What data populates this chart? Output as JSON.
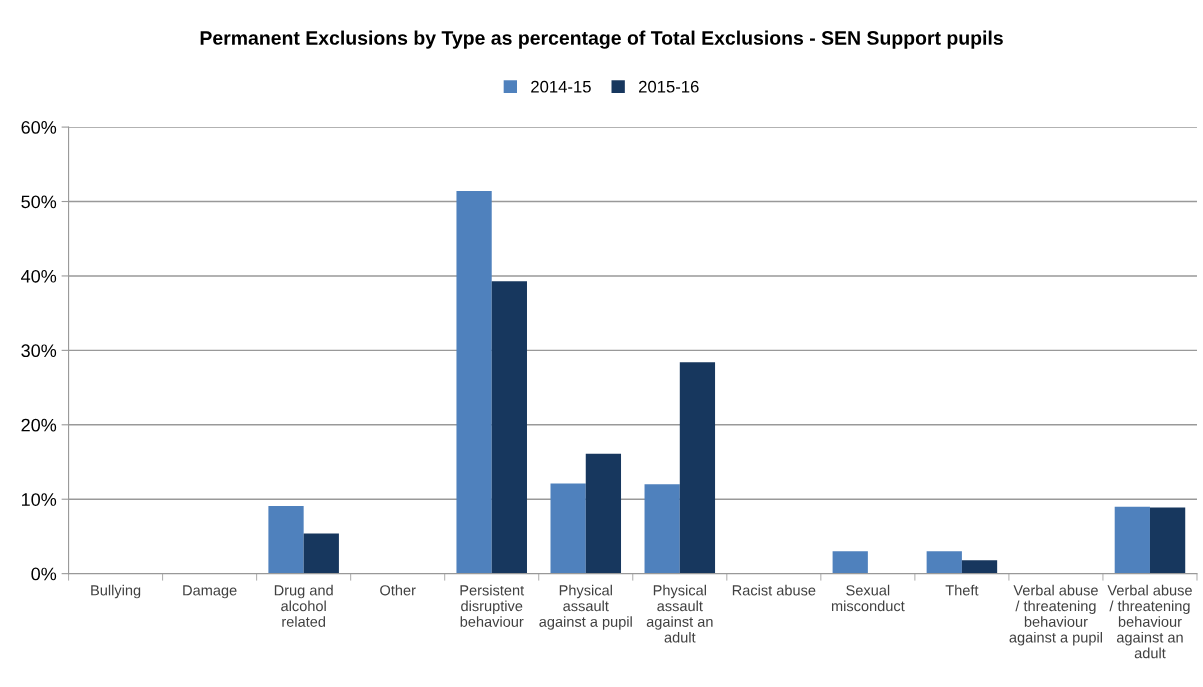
{
  "chart_data": {
    "type": "bar",
    "title": "Permanent Exclusions by Type as percentage of Total Exclusions - SEN Support pupils",
    "categories": [
      "Bullying",
      "Damage",
      "Drug and\nalcohol\nrelated",
      "Other",
      "Persistent\ndisruptive\nbehaviour",
      "Physical\nassault\nagainst a pupil",
      "Physical\nassault\nagainst an\nadult",
      "Racist abuse",
      "Sexual\nmisconduct",
      "Theft",
      "Verbal abuse\n/ threatening\nbehaviour\nagainst a pupil",
      "Verbal abuse\n/ threatening\nbehaviour\nagainst an\nadult"
    ],
    "series": [
      {
        "name": "2014-15",
        "color": "#4f81bd",
        "values": [
          0,
          0,
          9.1,
          0,
          51.4,
          12.1,
          12.0,
          0,
          3.0,
          3.0,
          0,
          9.0
        ]
      },
      {
        "name": "2015-16",
        "color": "#17375e",
        "values": [
          0,
          0,
          5.4,
          0,
          39.3,
          16.1,
          28.4,
          0,
          0,
          1.8,
          0,
          8.9
        ]
      }
    ],
    "ylim": [
      0,
      60
    ],
    "yticks": [
      {
        "value": 0,
        "label": "0%"
      },
      {
        "value": 10,
        "label": "10%"
      },
      {
        "value": 20,
        "label": "20%"
      },
      {
        "value": 30,
        "label": "30%"
      },
      {
        "value": 40,
        "label": "40%"
      },
      {
        "value": 50,
        "label": "50%"
      },
      {
        "value": 60,
        "label": "60%"
      }
    ],
    "grid": "y",
    "legend": "top"
  }
}
